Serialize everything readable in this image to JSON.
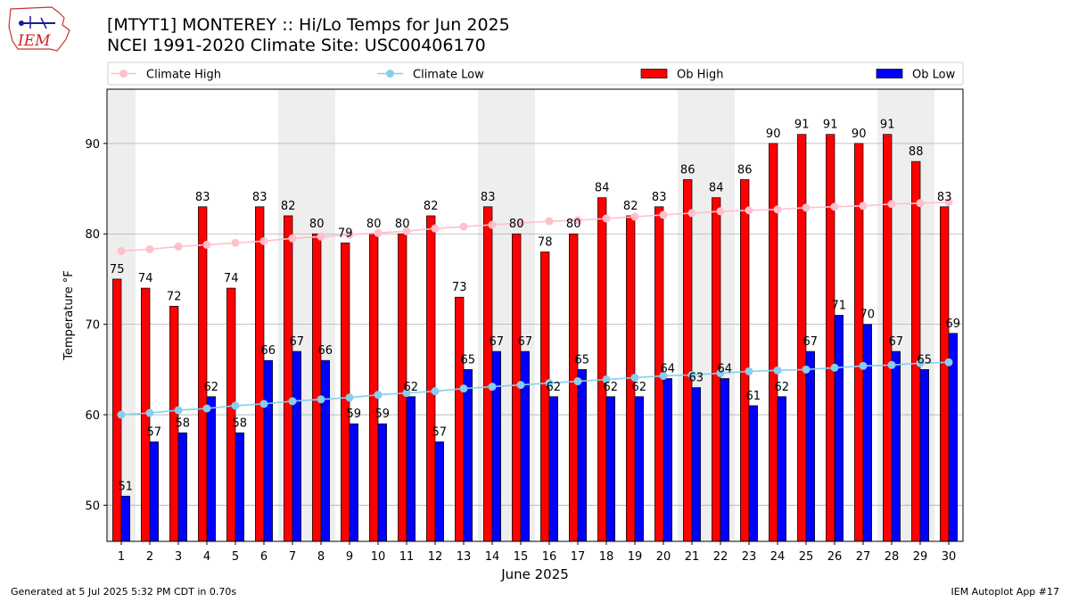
{
  "header": {
    "logo_text": "IEM",
    "title_line1": "[MTYT1] MONTEREY :: Hi/Lo Temps for Jun 2025",
    "title_line2": "NCEI 1991-2020 Climate Site: USC00406170"
  },
  "footer": {
    "generated": "Generated at 5 Jul 2025 5:32 PM CDT in 0.70s",
    "app": "IEM Autoplot App #17"
  },
  "colors": {
    "ob_high": "#ff0000",
    "ob_low": "#0000ff",
    "climate_high": "#ffc0cb",
    "climate_low": "#87ceeb",
    "weekend_shade": "#eeeeee",
    "grid": "#b0b0b0"
  },
  "chart_data": {
    "type": "bar",
    "xlabel": "June 2025",
    "ylabel": "Temperature °F",
    "ylim": [
      46,
      96
    ],
    "yticks": [
      50,
      60,
      70,
      80,
      90
    ],
    "grid": "horizontal",
    "legend_placement": "top",
    "x": [
      1,
      2,
      3,
      4,
      5,
      6,
      7,
      8,
      9,
      10,
      11,
      12,
      13,
      14,
      15,
      16,
      17,
      18,
      19,
      20,
      21,
      22,
      23,
      24,
      25,
      26,
      27,
      28,
      29,
      30
    ],
    "shaded_days": [
      1,
      7,
      8,
      14,
      15,
      21,
      22,
      28,
      29
    ],
    "bar_series": [
      {
        "name": "Ob High",
        "values": [
          75,
          74,
          72,
          83,
          74,
          83,
          82,
          80,
          79,
          80,
          80,
          82,
          73,
          83,
          80,
          78,
          80,
          84,
          82,
          83,
          86,
          84,
          86,
          90,
          91,
          91,
          90,
          91,
          88,
          83
        ]
      },
      {
        "name": "Ob Low",
        "values": [
          51,
          57,
          58,
          62,
          58,
          66,
          67,
          66,
          59,
          59,
          62,
          57,
          65,
          67,
          67,
          62,
          65,
          62,
          62,
          64,
          63,
          64,
          61,
          62,
          67,
          71,
          70,
          67,
          65,
          69
        ]
      }
    ],
    "line_series": [
      {
        "name": "Climate High",
        "values": [
          78.1,
          78.3,
          78.6,
          78.8,
          79.0,
          79.2,
          79.5,
          79.7,
          79.9,
          80.1,
          80.3,
          80.6,
          80.8,
          81.0,
          81.2,
          81.4,
          81.5,
          81.7,
          81.9,
          82.1,
          82.3,
          82.5,
          82.6,
          82.7,
          82.9,
          83.0,
          83.1,
          83.3,
          83.4,
          83.5
        ]
      },
      {
        "name": "Climate Low",
        "values": [
          60.0,
          60.2,
          60.5,
          60.7,
          61.0,
          61.2,
          61.5,
          61.7,
          61.9,
          62.2,
          62.4,
          62.6,
          62.9,
          63.1,
          63.3,
          63.5,
          63.7,
          63.9,
          64.1,
          64.3,
          64.4,
          64.6,
          64.8,
          64.9,
          65.0,
          65.2,
          65.4,
          65.5,
          65.7,
          65.8
        ]
      }
    ]
  }
}
